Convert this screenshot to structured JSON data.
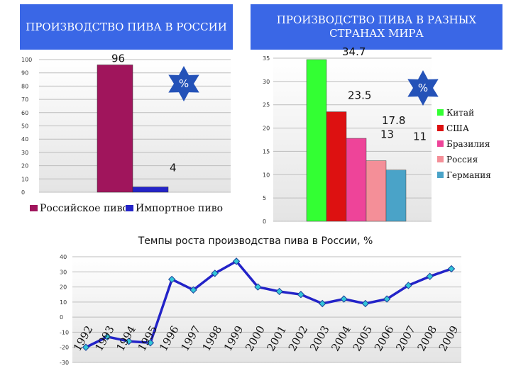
{
  "chart_data": [
    {
      "type": "bar",
      "title": "ПРОИЗВОДСТВО ПИВА В РОССИИ",
      "series": [
        {
          "name": "Российское пиво",
          "values": [
            96
          ],
          "color": "#a0155c"
        },
        {
          "name": "Импортное пиво",
          "values": [
            4
          ],
          "color": "#2424c8"
        }
      ],
      "data_labels": [
        "96",
        "4"
      ],
      "ylim": [
        0,
        100
      ],
      "yticks": [
        "0",
        "10",
        "20",
        "30",
        "40",
        "50",
        "60",
        "70",
        "80",
        "90",
        "100"
      ],
      "badge": "%",
      "legend": "bottom"
    },
    {
      "type": "bar",
      "title": "ПРОИЗВОДСТВО ПИВА  В РАЗНЫХ СТРАНАХ МИРА",
      "series": [
        {
          "name": "Китай",
          "values": [
            34.7
          ],
          "color": "#33ff33"
        },
        {
          "name": "США",
          "values": [
            23.5
          ],
          "color": "#dd1111"
        },
        {
          "name": "Бразилия",
          "values": [
            17.8
          ],
          "color": "#ee4499"
        },
        {
          "name": "Россия",
          "values": [
            13
          ],
          "color": "#f48f98"
        },
        {
          "name": "Германия",
          "values": [
            11
          ],
          "color": "#4aa3c8"
        }
      ],
      "data_labels": [
        "34.7",
        "23.5",
        "17.8",
        "13",
        "11"
      ],
      "ylim": [
        0,
        35
      ],
      "yticks": [
        "0",
        "5",
        "10",
        "15",
        "20",
        "25",
        "30",
        "35"
      ],
      "badge": "%",
      "legend": "right"
    },
    {
      "type": "line",
      "title": "Темпы роста производства пива в России, %",
      "x": [
        "1992",
        "1993",
        "1994",
        "1995",
        "1996",
        "1997",
        "1998",
        "1999",
        "2000",
        "2001",
        "2002",
        "2003",
        "2004",
        "2005",
        "2006",
        "2007",
        "2008",
        "2009"
      ],
      "values": [
        -20,
        -13,
        -16,
        -17,
        25,
        18,
        29,
        37,
        20,
        17,
        15,
        9,
        12,
        9,
        12,
        21,
        27,
        32
      ],
      "ylim": [
        -30,
        40
      ],
      "yticks": [
        "-30",
        "-20",
        "-10",
        "0",
        "10",
        "20",
        "30",
        "40"
      ],
      "colors": {
        "line": "#2323c8",
        "marker": "#33c6d8"
      },
      "legend": "none"
    }
  ]
}
